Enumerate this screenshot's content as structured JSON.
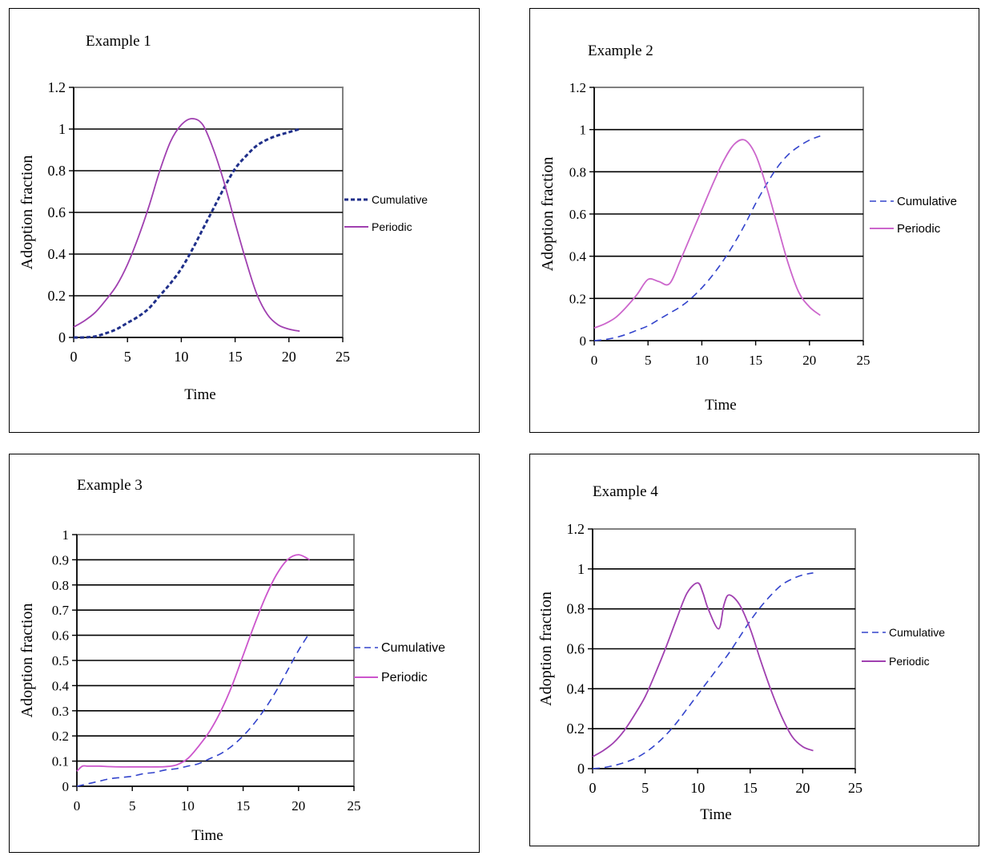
{
  "chart_data": [
    {
      "type": "line",
      "title": "Example 1",
      "xlabel": "Time",
      "ylabel": "Adoption fraction",
      "xlim": [
        0,
        25
      ],
      "ylim": [
        0,
        1.2
      ],
      "xticks": [
        "0",
        "5",
        "10",
        "15",
        "20",
        "25"
      ],
      "yticks": [
        "0",
        "0.2",
        "0.4",
        "0.6",
        "0.8",
        "1",
        "1.2"
      ],
      "grid": true,
      "legend": "right",
      "series": [
        {
          "name": "Cumulative",
          "style": "dashed-bold",
          "color": "#1f2f8a",
          "x": [
            0,
            1,
            2,
            3,
            4,
            5,
            6,
            7,
            8,
            9,
            10,
            11,
            12,
            13,
            14,
            15,
            16,
            17,
            18,
            19,
            20,
            21
          ],
          "y": [
            0,
            0,
            0.005,
            0.02,
            0.04,
            0.07,
            0.1,
            0.14,
            0.2,
            0.26,
            0.33,
            0.42,
            0.52,
            0.62,
            0.72,
            0.81,
            0.87,
            0.92,
            0.95,
            0.97,
            0.985,
            1.0
          ]
        },
        {
          "name": "Periodic",
          "style": "solid",
          "color": "#a040b0",
          "x": [
            0,
            1,
            2,
            3,
            4,
            5,
            6,
            7,
            8,
            9,
            10,
            11,
            12,
            13,
            14,
            15,
            16,
            17,
            18,
            19,
            20,
            21
          ],
          "y": [
            0.05,
            0.08,
            0.12,
            0.18,
            0.25,
            0.35,
            0.48,
            0.63,
            0.8,
            0.94,
            1.02,
            1.05,
            1.02,
            0.9,
            0.74,
            0.55,
            0.37,
            0.21,
            0.11,
            0.06,
            0.04,
            0.03
          ]
        }
      ]
    },
    {
      "type": "line",
      "title": "Example 2",
      "xlabel": "Time",
      "ylabel": "Adoption fraction",
      "xlim": [
        0,
        25
      ],
      "ylim": [
        0,
        1.2
      ],
      "xticks": [
        "0",
        "5",
        "10",
        "15",
        "20",
        "25"
      ],
      "yticks": [
        "0",
        "0.2",
        "0.4",
        "0.6",
        "0.8",
        "1",
        "1.2"
      ],
      "grid": true,
      "legend": "right",
      "series": [
        {
          "name": "Cumulative",
          "style": "dashed",
          "color": "#3344cc",
          "x": [
            0,
            1,
            2,
            3,
            4,
            5,
            6,
            7,
            8,
            9,
            10,
            11,
            12,
            13,
            14,
            15,
            16,
            17,
            18,
            19,
            20,
            21
          ],
          "y": [
            0,
            0.005,
            0.015,
            0.03,
            0.05,
            0.07,
            0.1,
            0.13,
            0.16,
            0.2,
            0.25,
            0.31,
            0.38,
            0.46,
            0.55,
            0.65,
            0.74,
            0.82,
            0.88,
            0.92,
            0.95,
            0.97
          ]
        },
        {
          "name": "Periodic",
          "style": "solid",
          "color": "#cc66cc",
          "x": [
            0,
            1,
            2,
            3,
            4,
            5,
            6,
            7,
            8,
            9,
            10,
            11,
            12,
            13,
            14,
            15,
            16,
            17,
            18,
            19,
            20,
            21
          ],
          "y": [
            0.06,
            0.08,
            0.11,
            0.16,
            0.22,
            0.29,
            0.28,
            0.27,
            0.38,
            0.5,
            0.62,
            0.74,
            0.85,
            0.93,
            0.95,
            0.88,
            0.73,
            0.55,
            0.37,
            0.23,
            0.16,
            0.12
          ]
        }
      ]
    },
    {
      "type": "line",
      "title": "Example 3",
      "xlabel": "Time",
      "ylabel": "Adoption fraction",
      "xlim": [
        0,
        25
      ],
      "ylim": [
        0,
        1
      ],
      "xticks": [
        "0",
        "5",
        "10",
        "15",
        "20",
        "25"
      ],
      "yticks": [
        "0",
        "0.1",
        "0.2",
        "0.3",
        "0.4",
        "0.5",
        "0.6",
        "0.7",
        "0.8",
        "0.9",
        "1"
      ],
      "grid": true,
      "legend": "right",
      "series": [
        {
          "name": "Cumulative",
          "style": "dashed",
          "color": "#3344cc",
          "x": [
            0,
            1,
            2,
            3,
            4,
            5,
            6,
            7,
            8,
            9,
            10,
            11,
            12,
            13,
            14,
            15,
            16,
            17,
            18,
            19,
            20,
            21
          ],
          "y": [
            0,
            0.01,
            0.02,
            0.03,
            0.035,
            0.04,
            0.05,
            0.055,
            0.065,
            0.07,
            0.08,
            0.09,
            0.11,
            0.13,
            0.16,
            0.2,
            0.25,
            0.31,
            0.38,
            0.46,
            0.54,
            0.61
          ]
        },
        {
          "name": "Periodic",
          "style": "solid",
          "color": "#cc55cc",
          "x": [
            0,
            0.5,
            1,
            2,
            3,
            4,
            5,
            6,
            7,
            8,
            9,
            10,
            11,
            12,
            13,
            14,
            15,
            16,
            17,
            18,
            19,
            20,
            21
          ],
          "y": [
            0.06,
            0.08,
            0.08,
            0.08,
            0.078,
            0.077,
            0.077,
            0.077,
            0.077,
            0.078,
            0.085,
            0.11,
            0.16,
            0.22,
            0.3,
            0.4,
            0.52,
            0.64,
            0.75,
            0.84,
            0.9,
            0.92,
            0.9
          ]
        }
      ]
    },
    {
      "type": "line",
      "title": "Example 4",
      "xlabel": "Time",
      "ylabel": "Adoption fraction",
      "xlim": [
        0,
        25
      ],
      "ylim": [
        0,
        1.2
      ],
      "xticks": [
        "0",
        "5",
        "10",
        "15",
        "20",
        "25"
      ],
      "yticks": [
        "0",
        "0.2",
        "0.4",
        "0.6",
        "0.8",
        "1",
        "1.2"
      ],
      "grid": true,
      "legend": "right",
      "series": [
        {
          "name": "Cumulative",
          "style": "dashed",
          "color": "#3344cc",
          "x": [
            0,
            1,
            2,
            3,
            4,
            5,
            6,
            7,
            8,
            9,
            10,
            11,
            12,
            13,
            14,
            15,
            16,
            17,
            18,
            19,
            20,
            21
          ],
          "y": [
            0,
            0.005,
            0.015,
            0.03,
            0.05,
            0.08,
            0.12,
            0.17,
            0.23,
            0.3,
            0.37,
            0.44,
            0.51,
            0.58,
            0.66,
            0.74,
            0.81,
            0.87,
            0.92,
            0.95,
            0.97,
            0.98
          ]
        },
        {
          "name": "Periodic",
          "style": "solid",
          "color": "#a040b0",
          "x": [
            0,
            1,
            2,
            3,
            4,
            5,
            6,
            7,
            8,
            9,
            10,
            10.5,
            11,
            12,
            12.5,
            13,
            14,
            15,
            16,
            17,
            18,
            19,
            20,
            21
          ],
          "y": [
            0.06,
            0.09,
            0.13,
            0.19,
            0.27,
            0.36,
            0.48,
            0.61,
            0.75,
            0.88,
            0.93,
            0.88,
            0.8,
            0.7,
            0.82,
            0.87,
            0.82,
            0.7,
            0.54,
            0.39,
            0.26,
            0.16,
            0.11,
            0.09
          ]
        }
      ]
    }
  ]
}
